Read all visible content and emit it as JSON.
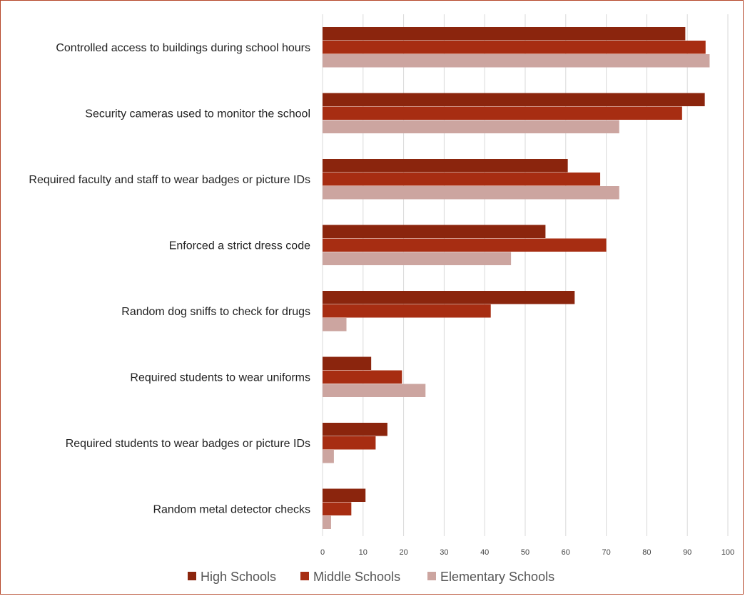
{
  "chart_data": {
    "type": "bar",
    "orientation": "horizontal",
    "title": "",
    "xlabel": "",
    "ylabel": "",
    "xlim": [
      0,
      100
    ],
    "xticks": [
      0,
      10,
      20,
      30,
      40,
      50,
      60,
      70,
      80,
      90,
      100
    ],
    "grid": true,
    "legend_position": "bottom",
    "categories": [
      "Controlled access to buildings during school hours",
      "Security cameras used to monitor the school",
      "Required faculty and staff to wear badges or picture IDs",
      "Enforced a strict dress code",
      "Random dog sniffs to check for drugs",
      "Required students to wear uniforms",
      "Required students to wear badges or picture IDs",
      "Random metal detector checks"
    ],
    "series": [
      {
        "name": "High Schools",
        "color": "#8b250d",
        "values": [
          89.5,
          94.3,
          60.5,
          55.0,
          62.2,
          12.0,
          16.0,
          10.6
        ]
      },
      {
        "name": "Middle Schools",
        "color": "#a72d12",
        "values": [
          94.5,
          88.7,
          68.5,
          70.0,
          41.5,
          19.6,
          13.1,
          7.1
        ]
      },
      {
        "name": "Elementary Schools",
        "color": "#cca5a0",
        "values": [
          95.5,
          73.2,
          73.2,
          46.5,
          5.9,
          25.4,
          2.8,
          2.1
        ]
      }
    ]
  }
}
